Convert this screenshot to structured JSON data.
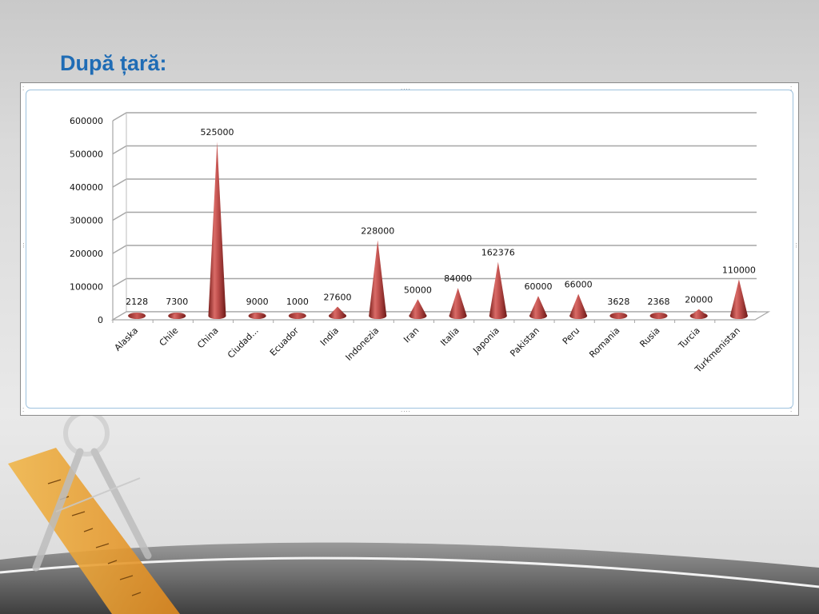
{
  "slide": {
    "title": "După țară:"
  },
  "chart_data": {
    "type": "bar",
    "style": "3d-cone",
    "color": "#c0504d",
    "categories": [
      "Alaska",
      "Chile",
      "China",
      "Ciudad...",
      "Ecuador",
      "India",
      "Indonezia",
      "Iran",
      "Italia",
      "Japonia",
      "Pakistan",
      "Peru",
      "Romania",
      "Rusia",
      "Turcia",
      "Turkmenistan"
    ],
    "values": [
      2128,
      7300,
      525000,
      9000,
      1000,
      27600,
      228000,
      50000,
      84000,
      162376,
      60000,
      66000,
      3628,
      2368,
      20000,
      110000
    ],
    "data_labels": [
      "2128",
      "7300",
      "525000",
      "9000",
      "1000",
      "27600",
      "228000",
      "50000",
      "84000",
      "162376",
      "60000",
      "66000",
      "3628",
      "2368",
      "20000",
      "110000"
    ],
    "ylim": [
      0,
      600000
    ],
    "yticks": [
      0,
      100000,
      200000,
      300000,
      400000,
      500000,
      600000
    ],
    "ytick_labels": [
      "0",
      "100000",
      "200000",
      "300000",
      "400000",
      "500000",
      "600000"
    ],
    "grid": true,
    "legend": "none"
  }
}
